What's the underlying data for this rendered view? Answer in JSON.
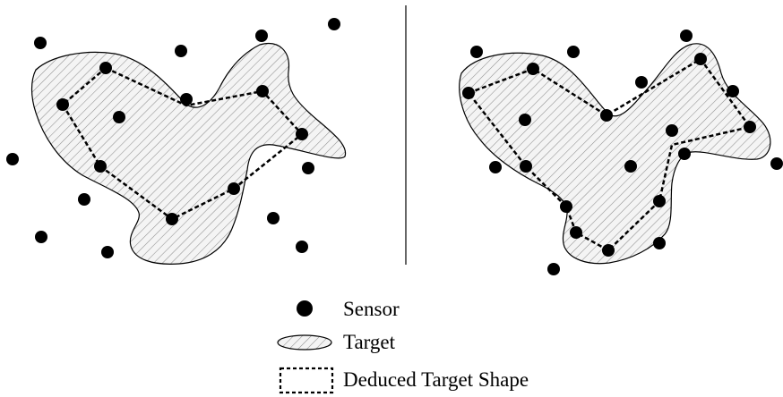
{
  "legend": {
    "sensor_label": "Sensor",
    "target_label": "Target",
    "deduced_label": "Deduced Target Shape"
  },
  "colors": {
    "ink": "#000000",
    "hatch": "#9a9a9a",
    "target_fill": "#f2f2f2"
  }
}
